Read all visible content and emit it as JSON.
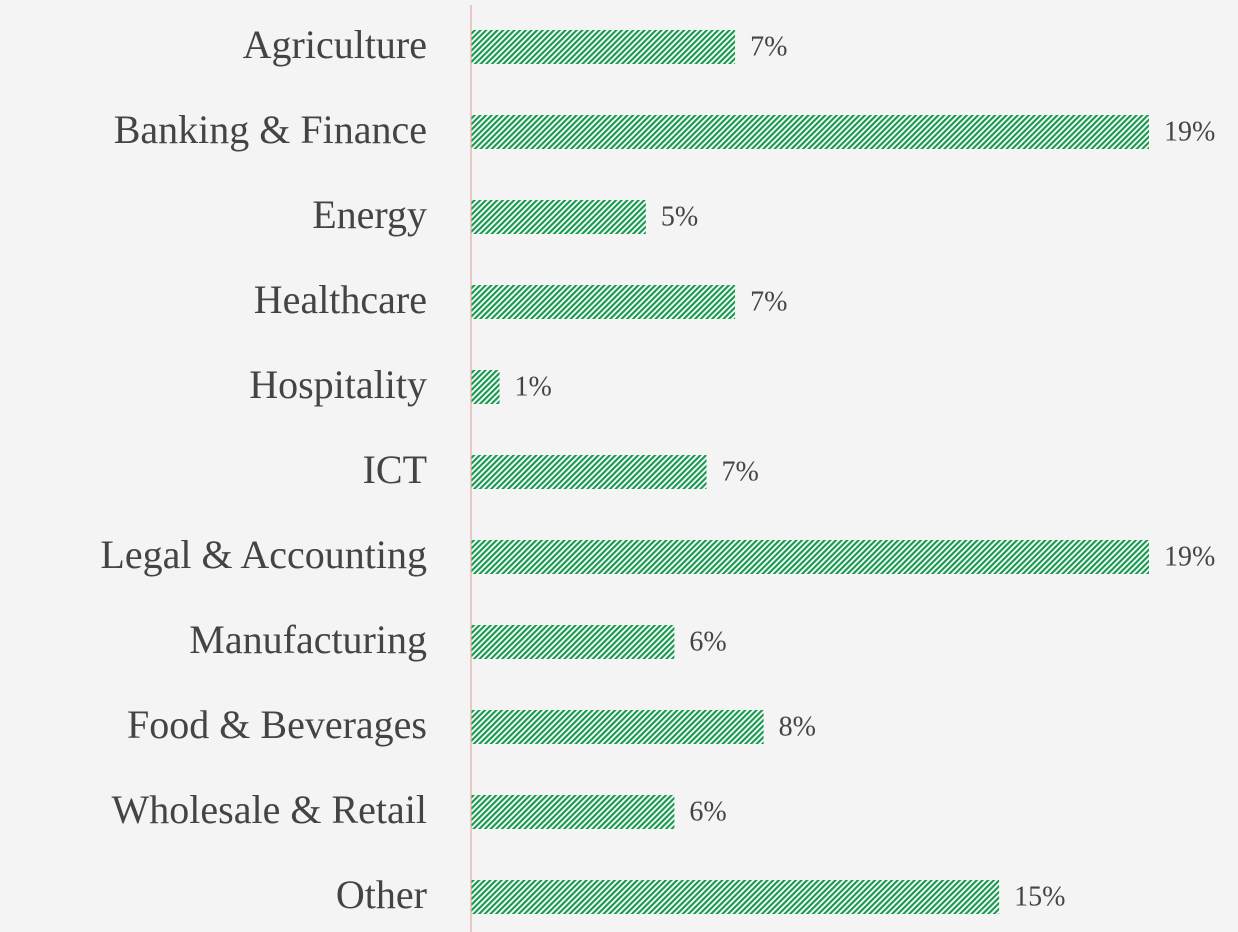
{
  "chart_data": {
    "type": "barh",
    "categories": [
      "Agriculture",
      "Banking & Finance",
      "Energy",
      "Healthcare",
      "Hospitality",
      "ICT",
      "Legal & Accounting",
      "Manufacturing",
      "Food & Beverages",
      "Wholesale & Retail",
      "Other"
    ],
    "values": [
      7.4,
      19,
      4.9,
      7.4,
      0.8,
      6.6,
      19,
      5.7,
      8.2,
      5.7,
      14.8
    ],
    "value_labels": [
      "7%",
      "19%",
      "5%",
      "7%",
      "1%",
      "7%",
      "19%",
      "6%",
      "8%",
      "6%",
      "15%"
    ],
    "color": "#1a9a50",
    "xlim": [
      0,
      19
    ]
  }
}
